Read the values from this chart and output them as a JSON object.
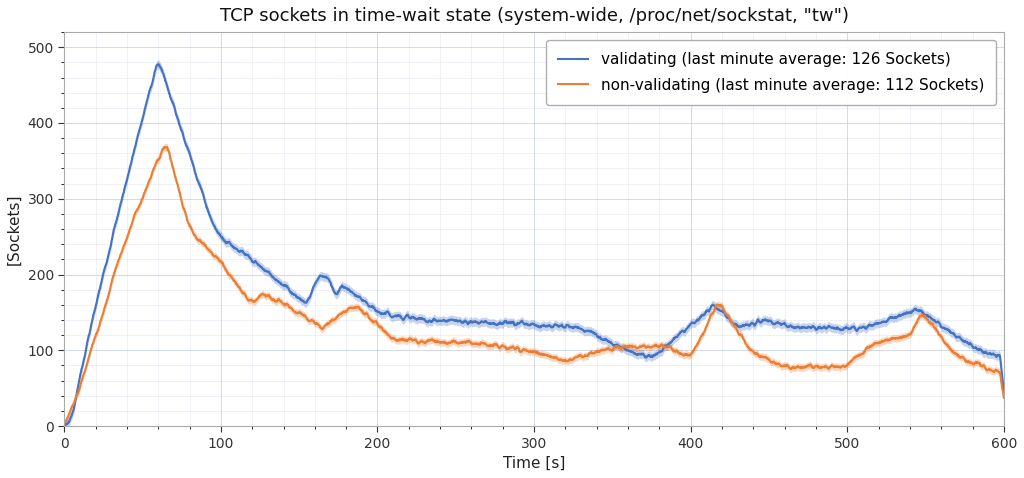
{
  "title": "TCP sockets in time-wait state (system-wide, /proc/net/sockstat, \"tw\")",
  "xlabel": "Time [s]",
  "ylabel": "[Sockets]",
  "xlim": [
    0,
    600
  ],
  "ylim": [
    0,
    520
  ],
  "yticks": [
    0,
    100,
    200,
    300,
    400,
    500
  ],
  "xticks": [
    0,
    100,
    200,
    300,
    400,
    500,
    600
  ],
  "blue_color": "#4472C4",
  "orange_color": "#ED7D31",
  "blue_label": "validating (last minute average: 126 Sockets)",
  "orange_label": "non-validating (last minute average: 112 Sockets)",
  "bg_color": "#ffffff",
  "grid_color": "#c8d0e0",
  "title_fontsize": 13,
  "label_fontsize": 11,
  "tick_fontsize": 10,
  "legend_fontsize": 11
}
